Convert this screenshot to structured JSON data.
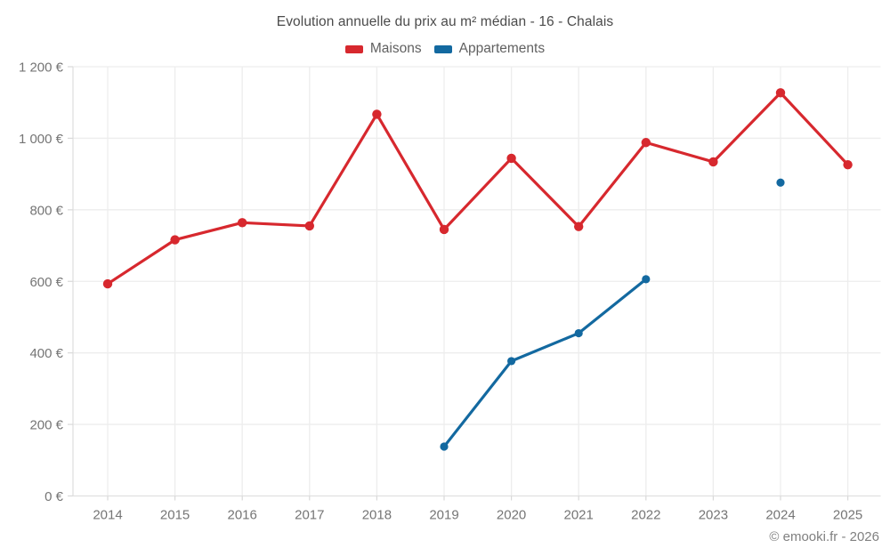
{
  "header": {
    "title": "Evolution annuelle du prix au m² médian - 16 - Chalais",
    "legend": [
      {
        "label": "Maisons",
        "color": "#d7282e"
      },
      {
        "label": "Appartements",
        "color": "#1369a0"
      }
    ]
  },
  "footer": {
    "copyright": "© emooki.fr - 2026"
  },
  "chart_data": {
    "type": "line",
    "title": "Evolution annuelle du prix au m² médian - 16 - Chalais",
    "x": [
      "2014",
      "2015",
      "2016",
      "2017",
      "2018",
      "2019",
      "2020",
      "2021",
      "2022",
      "2023",
      "2024",
      "2025"
    ],
    "series": [
      {
        "name": "Maisons",
        "color": "#d7282e",
        "values": [
          593,
          716,
          764,
          755,
          1067,
          745,
          944,
          753,
          988,
          934,
          1127,
          926
        ]
      },
      {
        "name": "Appartements",
        "color": "#1369a0",
        "values": [
          null,
          null,
          null,
          null,
          null,
          138,
          377,
          455,
          606,
          null,
          876,
          null
        ]
      }
    ],
    "ylim": [
      0,
      1200
    ],
    "ytick_step": 200,
    "ytick_labels": [
      "0 €",
      "200 €",
      "400 €",
      "600 €",
      "800 €",
      "1 000 €",
      "1 200 €"
    ],
    "unit": "€",
    "grid": true,
    "legend_position": "top",
    "colors": {
      "grid": "#ededed",
      "axis": "#e0e0e0",
      "tick": "#d9d9d9",
      "tick_label": "#757575",
      "title_text": "#4b4b4b",
      "legend_text": "#616161",
      "footer_text": "#808080"
    }
  }
}
